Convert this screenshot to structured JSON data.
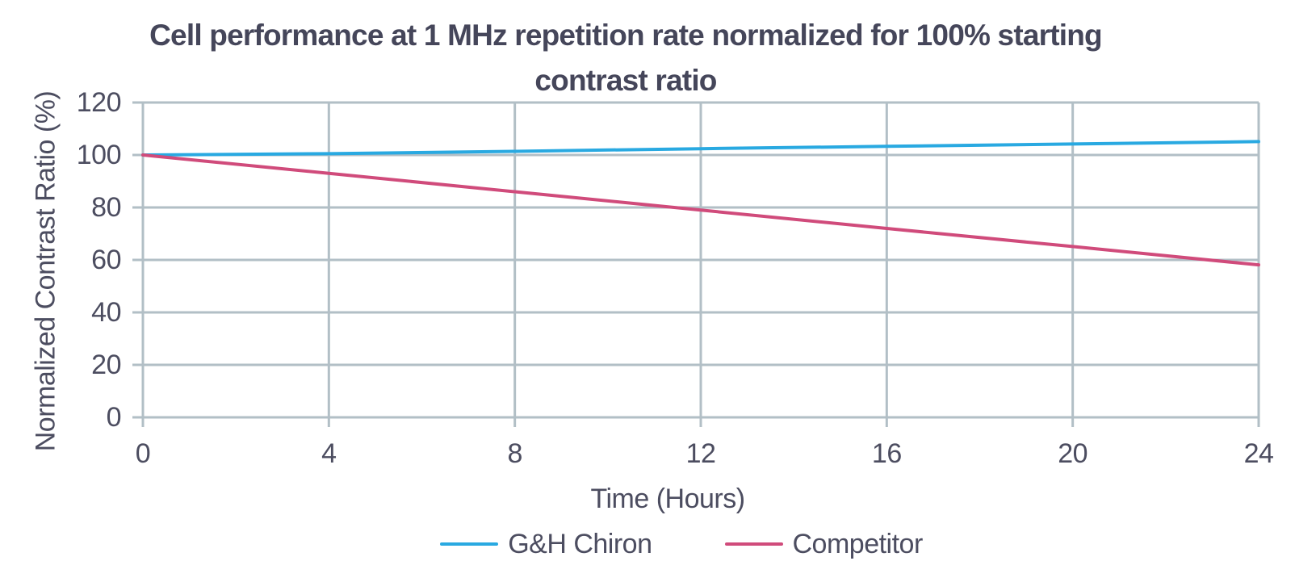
{
  "chart_data": {
    "type": "line",
    "title": "Cell performance at 1 MHz repetition rate normalized for 100% starting contrast ratio",
    "title_lines": [
      "Cell performance at 1 MHz repetition rate normalized for 100% starting",
      "contrast ratio"
    ],
    "xlabel": "Time (Hours)",
    "ylabel": "Normalized Contrast Ratio (%)",
    "x": [
      0,
      4,
      8,
      12,
      16,
      20,
      24
    ],
    "xlim": [
      0,
      24
    ],
    "ylim": [
      0,
      120
    ],
    "yticks": [
      0,
      20,
      40,
      60,
      80,
      100,
      120
    ],
    "grid": true,
    "legend_position": "bottom",
    "series": [
      {
        "name": "G&H Chiron",
        "color": "#29a9e1",
        "values": [
          100,
          100.5,
          101.4,
          102.4,
          103.3,
          104.2,
          105.1
        ]
      },
      {
        "name": "Competitor",
        "color": "#d04b7b",
        "values": [
          100,
          93,
          86,
          79,
          72,
          65.1,
          58.1
        ]
      }
    ]
  },
  "colors": {
    "grid": "#b2bfc6",
    "title_text": "#45465a",
    "axis_text": "#4c4d60"
  }
}
